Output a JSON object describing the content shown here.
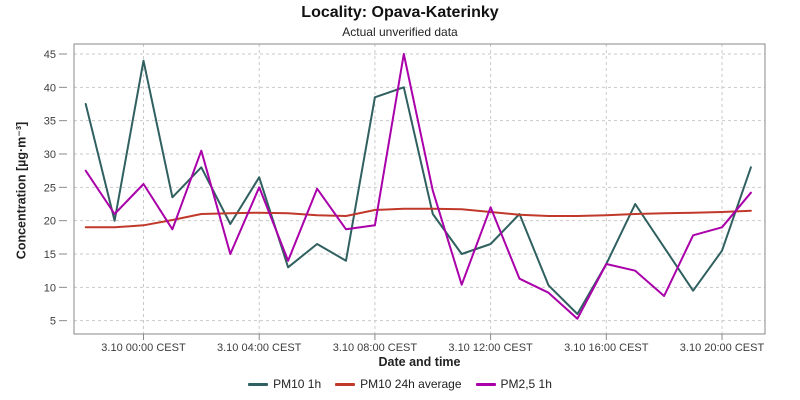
{
  "header": {
    "title": "Locality: Opava-Katerinky",
    "subtitle": "Actual unverified data"
  },
  "chart_data": {
    "type": "line",
    "title": "Locality: Opava-Katerinky",
    "subtitle": "Actual unverified data",
    "xlabel": "Date and time",
    "ylabel": "Concentration [µg·m⁻³]",
    "grid": true,
    "legend_position": "bottom",
    "ylim": [
      3,
      46.5
    ],
    "yticks": [
      5,
      10,
      15,
      20,
      25,
      30,
      35,
      40,
      45
    ],
    "x_unit": "hours relative to 3.10 00:00 CEST",
    "x": [
      -2,
      -1,
      0,
      1,
      2,
      3,
      4,
      5,
      6,
      7,
      8,
      9,
      10,
      11,
      12,
      13,
      14,
      15,
      16,
      17,
      18,
      19,
      20,
      21
    ],
    "xticks": [
      {
        "h": 0,
        "label": "3.10 00:00 CEST"
      },
      {
        "h": 4,
        "label": "3.10 04:00 CEST"
      },
      {
        "h": 8,
        "label": "3.10 08:00 CEST"
      },
      {
        "h": 12,
        "label": "3.10 12:00 CEST"
      },
      {
        "h": 16,
        "label": "3.10 16:00 CEST"
      },
      {
        "h": 20,
        "label": "3.10 20:00 CEST"
      }
    ],
    "series": [
      {
        "name": "PM10 1h",
        "color": "#306060",
        "values": [
          37.5,
          20,
          44,
          23.5,
          28,
          19.5,
          26.5,
          13,
          16.5,
          14,
          38.5,
          40,
          21,
          15,
          16.5,
          21,
          10.3,
          6,
          13.5,
          22.5,
          16,
          9.5,
          15.5,
          28
        ]
      },
      {
        "name": "PM10 24h average",
        "color": "#c0392b",
        "values": [
          19,
          19,
          19.3,
          20.1,
          21,
          21.1,
          21.2,
          21.1,
          20.8,
          20.7,
          21.6,
          21.8,
          21.8,
          21.7,
          21.3,
          20.9,
          20.7,
          20.7,
          20.8,
          21,
          21.1,
          21.2,
          21.3,
          21.5
        ]
      },
      {
        "name": "PM2,5 1h",
        "color": "#aa00aa",
        "values": [
          27.5,
          21,
          25.5,
          18.7,
          30.5,
          15,
          25,
          14,
          24.8,
          18.7,
          19.3,
          45,
          24.5,
          10.4,
          22,
          11.3,
          9.2,
          5.3,
          13.5,
          12.5,
          8.7,
          17.8,
          19,
          24.2
        ]
      }
    ],
    "colors": {
      "plot_border": "#8a8a8a",
      "gridline": "#c9c9c9",
      "tick": "#8a8a8a",
      "tick_text": "#3d3d3d",
      "text": "#222222"
    }
  }
}
